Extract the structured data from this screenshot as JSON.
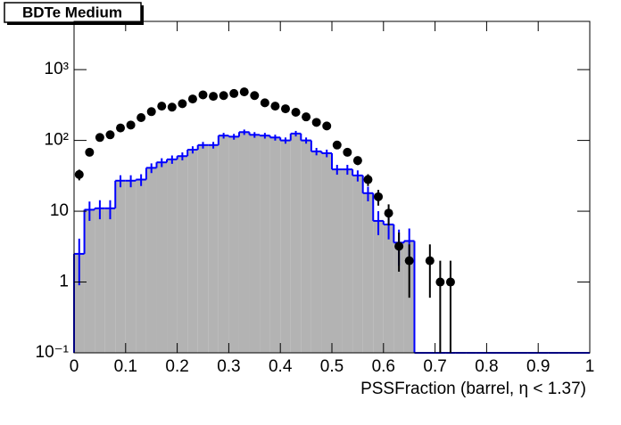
{
  "chart_data": {
    "type": "histogram",
    "title": "BDTe Medium",
    "x_label": "PSSFraction (barrel,  η < 1.37)",
    "bins": [
      0,
      0.02,
      0.04,
      0.06,
      0.08,
      0.1,
      0.12,
      0.14,
      0.16,
      0.18,
      0.2,
      0.22,
      0.24,
      0.26,
      0.28,
      0.3,
      0.32,
      0.34,
      0.36,
      0.38,
      0.4,
      0.42,
      0.44,
      0.46,
      0.48,
      0.5,
      0.52,
      0.54,
      0.56,
      0.58,
      0.6,
      0.62,
      0.64,
      0.66,
      0.68,
      0.7,
      0.72,
      0.74,
      0.76,
      0.78,
      0.8,
      0.82,
      0.84,
      0.86,
      0.88,
      0.9,
      0.92,
      0.94,
      0.96,
      0.98,
      1
    ],
    "series": [
      {
        "style": "filled-step",
        "color": "#0000ff",
        "fill": "#b3b3b3",
        "values": [
          2.5,
          10.5,
          11,
          11,
          27,
          27,
          28,
          41,
          49,
          54,
          60,
          74,
          86,
          86,
          117,
          113,
          131,
          120,
          117,
          110,
          100,
          125,
          100,
          70,
          66,
          39,
          39,
          32,
          18,
          7.3,
          6.5,
          3.6,
          3.8,
          0,
          0,
          0,
          0,
          0,
          0,
          0,
          0,
          0,
          0,
          0,
          0,
          0,
          0,
          0,
          0,
          0
        ],
        "errors": [
          1.6,
          3.2,
          3.3,
          3.3,
          5.2,
          5.2,
          5.3,
          6.4,
          7,
          7.3,
          7.7,
          8.6,
          9.3,
          9.3,
          10.8,
          10.6,
          11.4,
          11,
          10.8,
          10.5,
          10,
          11.2,
          10,
          8.4,
          8.1,
          6.2,
          6.2,
          5.7,
          4.2,
          2.7,
          2.5,
          1.9,
          1.9,
          0,
          0,
          0,
          0,
          0,
          0,
          0,
          0,
          0,
          0,
          0,
          0,
          0,
          0,
          0,
          0,
          0
        ]
      },
      {
        "style": "points",
        "color": "#000000",
        "values": [
          33,
          68,
          110,
          120,
          150,
          165,
          210,
          255,
          305,
          295,
          330,
          385,
          440,
          420,
          430,
          460,
          485,
          430,
          340,
          305,
          280,
          250,
          215,
          180,
          160,
          86,
          68,
          52,
          28,
          16,
          9.4,
          3.2,
          2.0,
          null,
          2.0,
          1.0,
          1.0,
          null,
          null,
          null,
          null,
          null,
          null,
          null,
          null,
          null,
          null,
          null,
          null,
          null
        ],
        "errors": [
          5.7,
          8.2,
          10.5,
          11,
          12.2,
          12.8,
          14.5,
          16,
          17.5,
          17.2,
          18.2,
          19.6,
          21,
          20.5,
          20.7,
          21.4,
          22,
          20.7,
          18.4,
          17.5,
          16.7,
          15.8,
          14.7,
          13.4,
          12.6,
          9.3,
          8.2,
          7.2,
          5.3,
          4,
          3.1,
          1.8,
          1.4,
          null,
          1.4,
          1,
          1,
          null,
          null,
          null,
          null,
          null,
          null,
          null,
          null,
          null,
          null,
          null,
          null,
          null
        ]
      }
    ],
    "xlim": [
      0,
      1
    ],
    "xticks": [
      0,
      0.1,
      0.2,
      0.3,
      0.4,
      0.5,
      0.6,
      0.7,
      0.8,
      0.9,
      1
    ],
    "ylim": [
      0.1,
      4800
    ],
    "log_y": true,
    "yticks": [
      {
        "value": 0.1,
        "label": "10⁻¹"
      },
      1,
      10,
      {
        "value": 100,
        "label": "10²"
      },
      {
        "value": 1000,
        "label": "10³"
      }
    ]
  }
}
